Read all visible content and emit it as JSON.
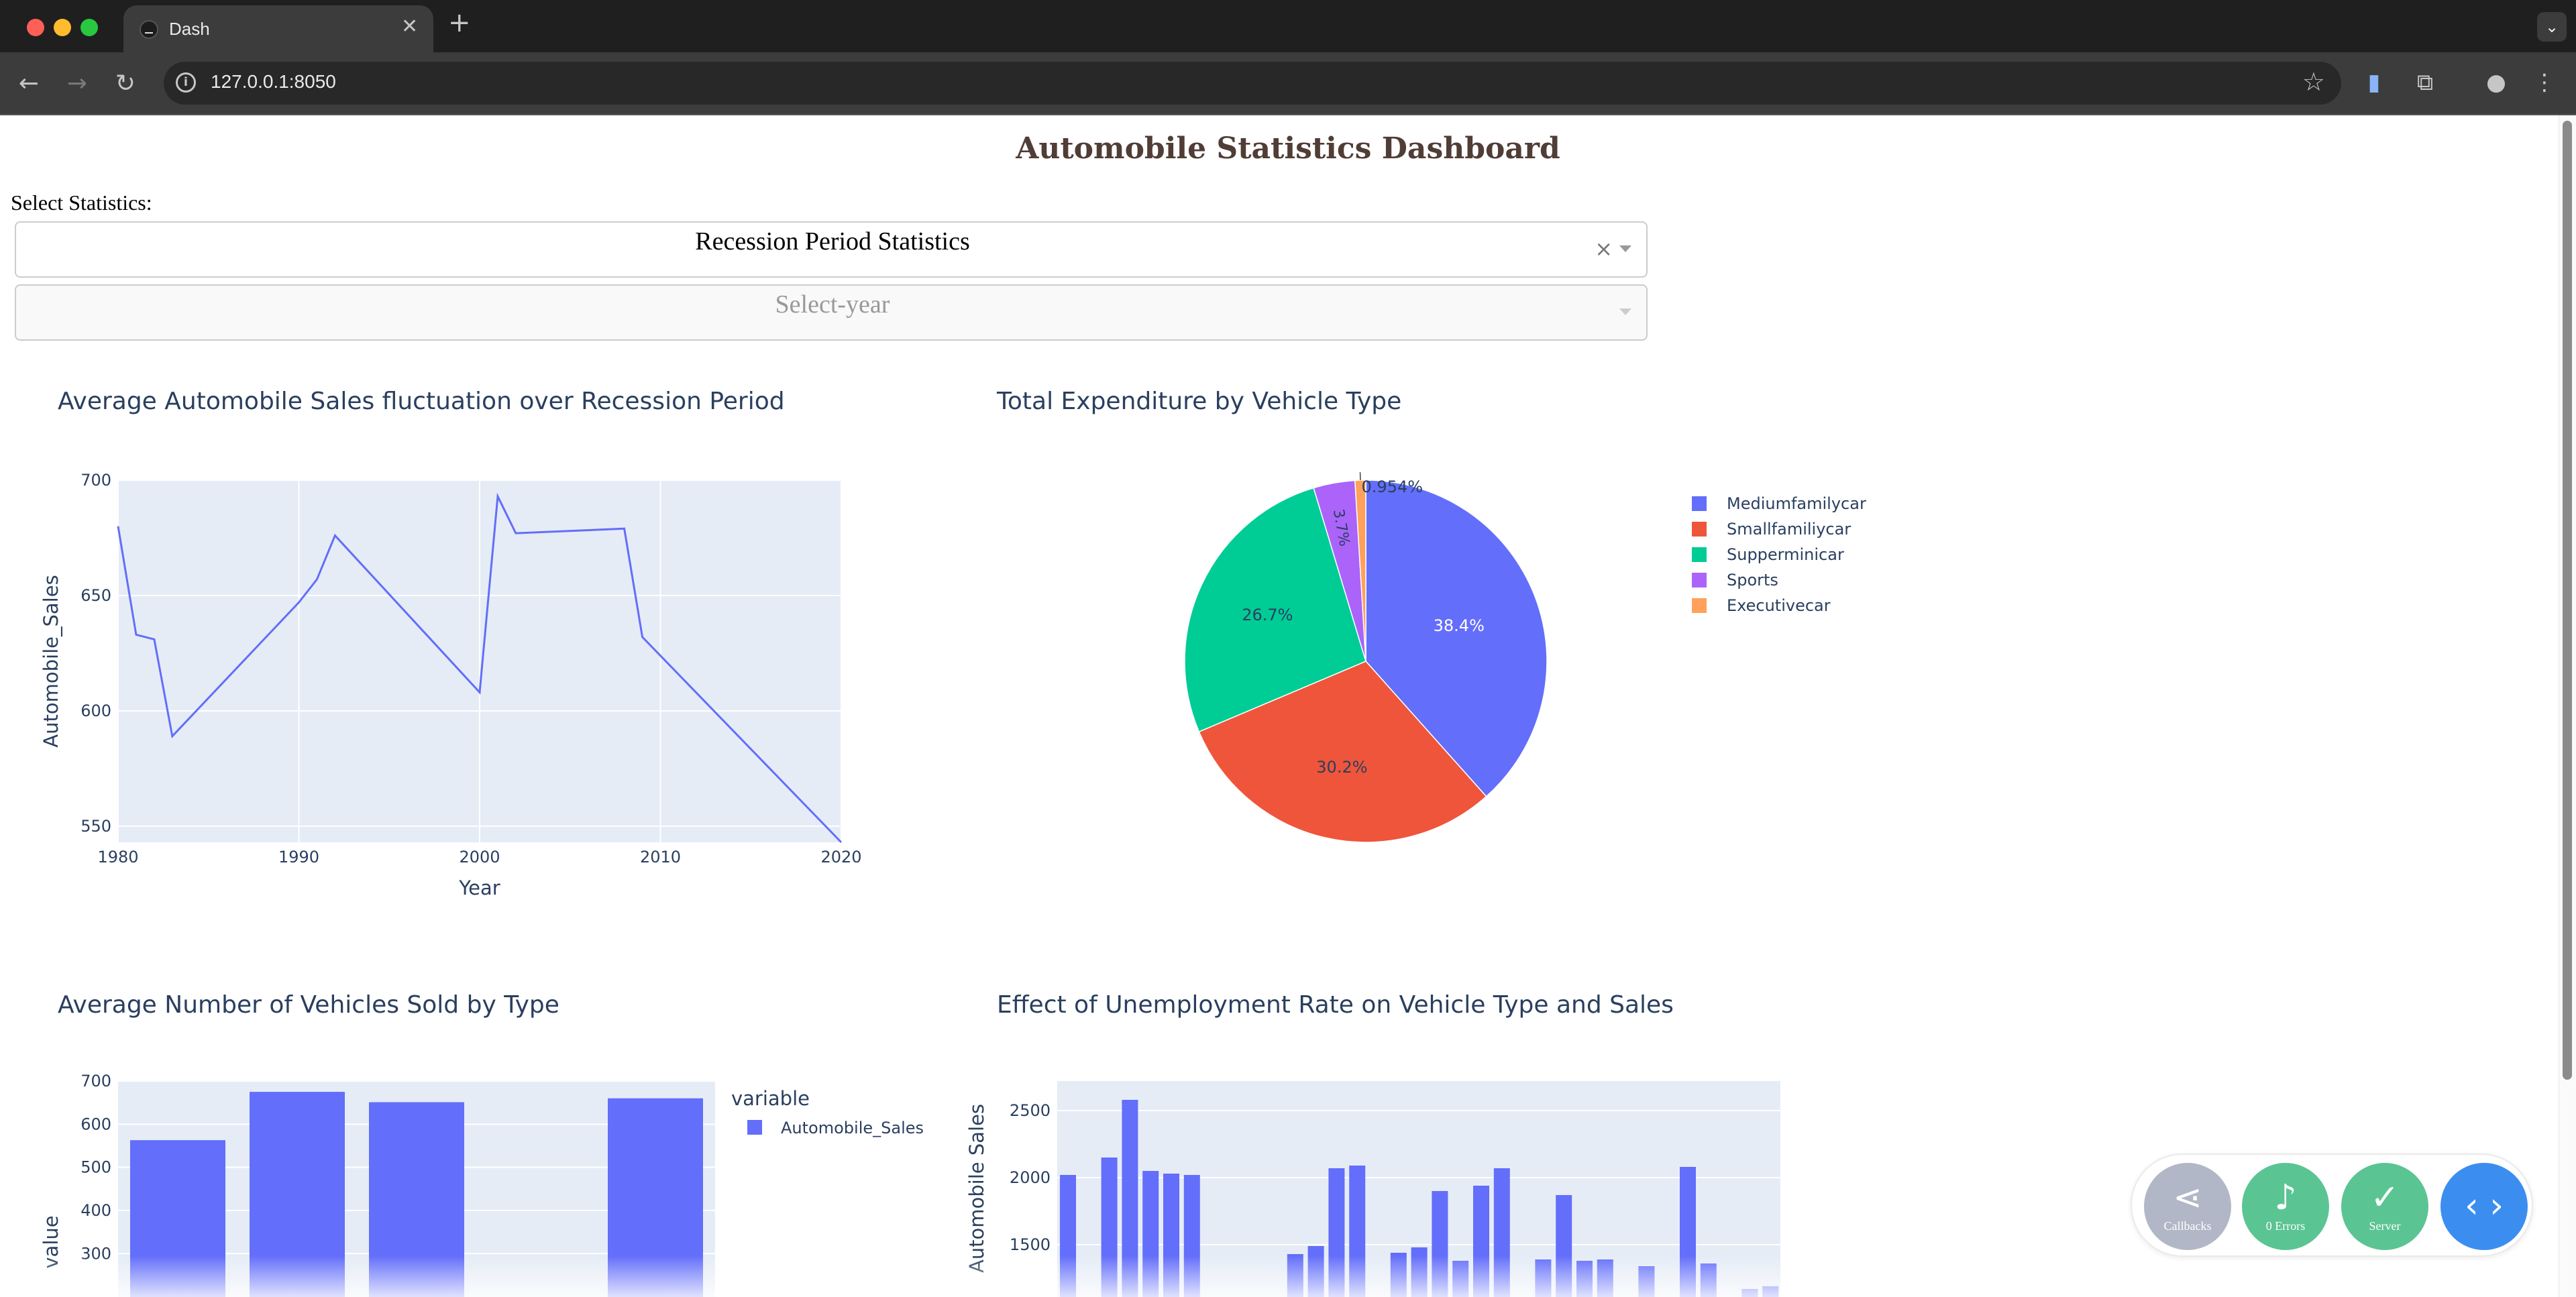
{
  "browser": {
    "tab_title": "Dash",
    "url": "127.0.0.1:8050"
  },
  "page": {
    "title": "Automobile Statistics Dashboard",
    "select_label": "Select Statistics:",
    "stat_dropdown_value": "Recession Period Statistics",
    "year_dropdown_placeholder": "Select-year"
  },
  "icons": {
    "back": "arrow-left-icon",
    "forward": "arrow-right-icon",
    "reload": "reload-icon",
    "info": "info-icon",
    "star": "star-icon",
    "extension": "puzzle-icon",
    "profile": "person-icon"
  },
  "colors": {
    "title": "#503d36",
    "plot_bg": "#e5ecf6",
    "series_blue": "#636efa",
    "pie": [
      "#636efa",
      "#ef553b",
      "#00cc96",
      "#ab63fa",
      "#ffa15a"
    ]
  },
  "devtools": {
    "callbacks": "Callbacks",
    "errors": "0 Errors",
    "server": "Server"
  },
  "chart_data": [
    {
      "type": "line",
      "title": "Average Automobile Sales fluctuation over Recession Period",
      "xlabel": "Year",
      "ylabel": "Automobile_Sales",
      "xlim": [
        1980,
        2020
      ],
      "ylim": [
        543,
        700
      ],
      "xticks": [
        1980,
        1990,
        2000,
        2010,
        2020
      ],
      "yticks": [
        550,
        600,
        650,
        700
      ],
      "x": [
        1980,
        1981,
        1982,
        1983,
        1990,
        1991,
        1992,
        2000,
        2001,
        2002,
        2008,
        2009,
        2020
      ],
      "y": [
        680,
        633,
        631,
        589,
        647,
        657,
        676,
        608,
        693,
        677,
        679,
        632,
        543
      ]
    },
    {
      "type": "pie",
      "title": "Total Expenditure by Vehicle Type",
      "labels": [
        "Mediumfamilycar",
        "Smallfamiliycar",
        "Supperminicar",
        "Sports",
        "Executivecar"
      ],
      "values": [
        38.4,
        30.2,
        26.7,
        3.7,
        0.954
      ],
      "value_labels": [
        "38.4%",
        "30.2%",
        "26.7%",
        "3.7%",
        "0.954%"
      ],
      "legend": "right"
    },
    {
      "type": "bar",
      "title": "Average Number of Vehicles Sold by Type",
      "ylabel": "value",
      "legend_title": "variable",
      "yticks": [
        300,
        400,
        500,
        600,
        700
      ],
      "series": [
        {
          "name": "Automobile_Sales",
          "values": [
            563,
            675,
            651,
            null,
            660
          ]
        }
      ]
    },
    {
      "type": "bar",
      "title": "Effect of Unemployment Rate on Vehicle Type and Sales",
      "ylabel": "Automobile Sales",
      "yticks": [
        1500,
        2000,
        2500
      ],
      "values": [
        2020,
        null,
        2150,
        2580,
        2050,
        2030,
        2020,
        null,
        null,
        null,
        null,
        1430,
        1490,
        2070,
        2090,
        null,
        1440,
        1480,
        1900,
        1380,
        1940,
        2070,
        null,
        1390,
        1870,
        1380,
        1390,
        null,
        1340,
        null,
        2080,
        1360,
        null,
        1170,
        1190
      ]
    }
  ]
}
